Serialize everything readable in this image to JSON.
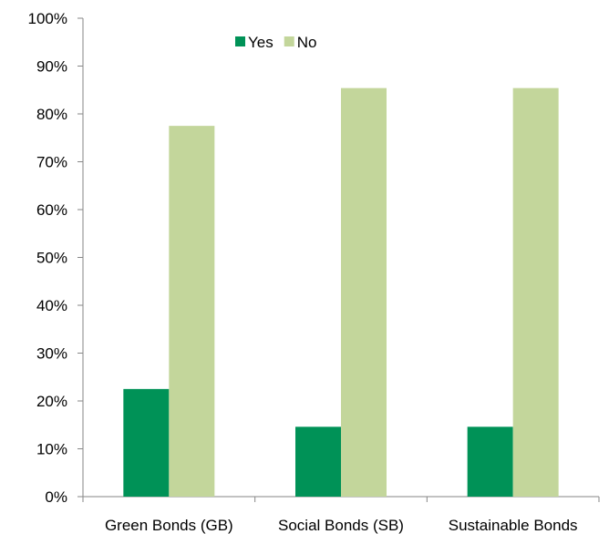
{
  "chart_data": {
    "type": "bar",
    "categories": [
      "Green Bonds (GB)",
      "Social Bonds (SB)",
      "Sustainable Bonds"
    ],
    "series": [
      {
        "name": "Yes",
        "values": [
          22.5,
          14.6,
          14.6
        ],
        "color": "#009257"
      },
      {
        "name": "No",
        "values": [
          77.5,
          85.4,
          85.4
        ],
        "color": "#c3d69b"
      }
    ],
    "y_ticks": [
      "0%",
      "10%",
      "20%",
      "30%",
      "40%",
      "50%",
      "60%",
      "70%",
      "80%",
      "90%",
      "100%"
    ],
    "ylim": [
      0,
      100
    ],
    "y_unit": "%",
    "grid": false,
    "legend_position": "top-center"
  }
}
